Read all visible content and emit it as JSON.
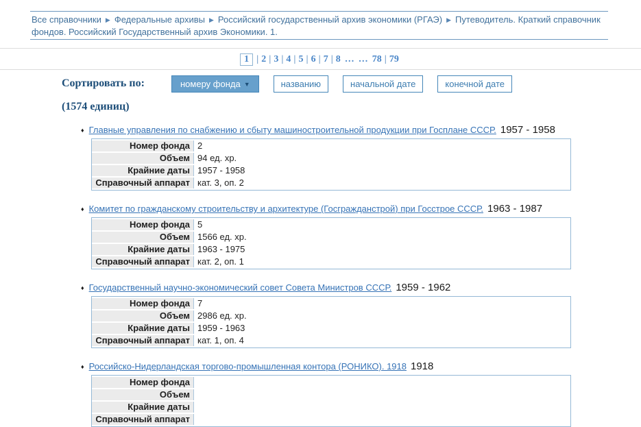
{
  "breadcrumb": {
    "separator": "▶",
    "items": [
      "Все справочники",
      "Федеральные архивы",
      "Российский государственный архив экономики (РГАЭ)",
      "Путеводитель. Краткий справочник фондов. Российский Государственный архив Экономики. 1."
    ]
  },
  "pagination": {
    "separator": "|",
    "current": "1",
    "links": [
      "2",
      "3",
      "4",
      "5",
      "6",
      "7",
      "8"
    ],
    "ellipses": [
      "…",
      "…"
    ],
    "tail": [
      "78",
      "79"
    ]
  },
  "sort": {
    "label": "Сортировать по:",
    "active_button": "номеру фонда",
    "active_arrow": "▼",
    "buttons": [
      "названию",
      "начальной дате",
      "конечной дате"
    ]
  },
  "count_label": "(1574 единиц)",
  "bullet_glyph": "♦",
  "table_labels": [
    "Номер фонда",
    "Объем",
    "Крайние даты",
    "Справочный аппарат"
  ],
  "items": [
    {
      "title": "Главные управления по снабжению и сбыту машиностроительной продукции при Госплане СССР.",
      "dates": "1957 - 1958",
      "values": [
        "2",
        "94 ед. хр.",
        "1957 - 1958",
        "кат. 3, оп. 2"
      ]
    },
    {
      "title": "Комитет по гражданскому строительству и архитектуре (Госгражданстрой) при Госстрое СССР.",
      "dates": "1963 - 1987",
      "values": [
        "5",
        "1566 ед. хр.",
        "1963 - 1975",
        "кат. 2, оп. 1"
      ]
    },
    {
      "title": "Государственный научно-экономический совет Совета Министров СССР.",
      "dates": "1959 - 1962",
      "values": [
        "7",
        "2986 ед. хр.",
        "1959 - 1963",
        "кат. 1, оп. 4"
      ]
    },
    {
      "title": "Российско-Нидерландская торгово-промышленная контора (РОНИКО). 1918",
      "dates": "1918",
      "values": [
        "",
        "",
        "",
        ""
      ]
    }
  ],
  "colors": {
    "link_blue": "#3673b6",
    "breadcrumb_blue": "#41719c",
    "accent_navy": "#1d4e79",
    "button_border": "#4486b8",
    "active_button_bg": "#67a0cc",
    "table_border": "#94b8d6",
    "label_cell_bg": "#ebebeb",
    "divider_gray": "#dcdcdc"
  }
}
